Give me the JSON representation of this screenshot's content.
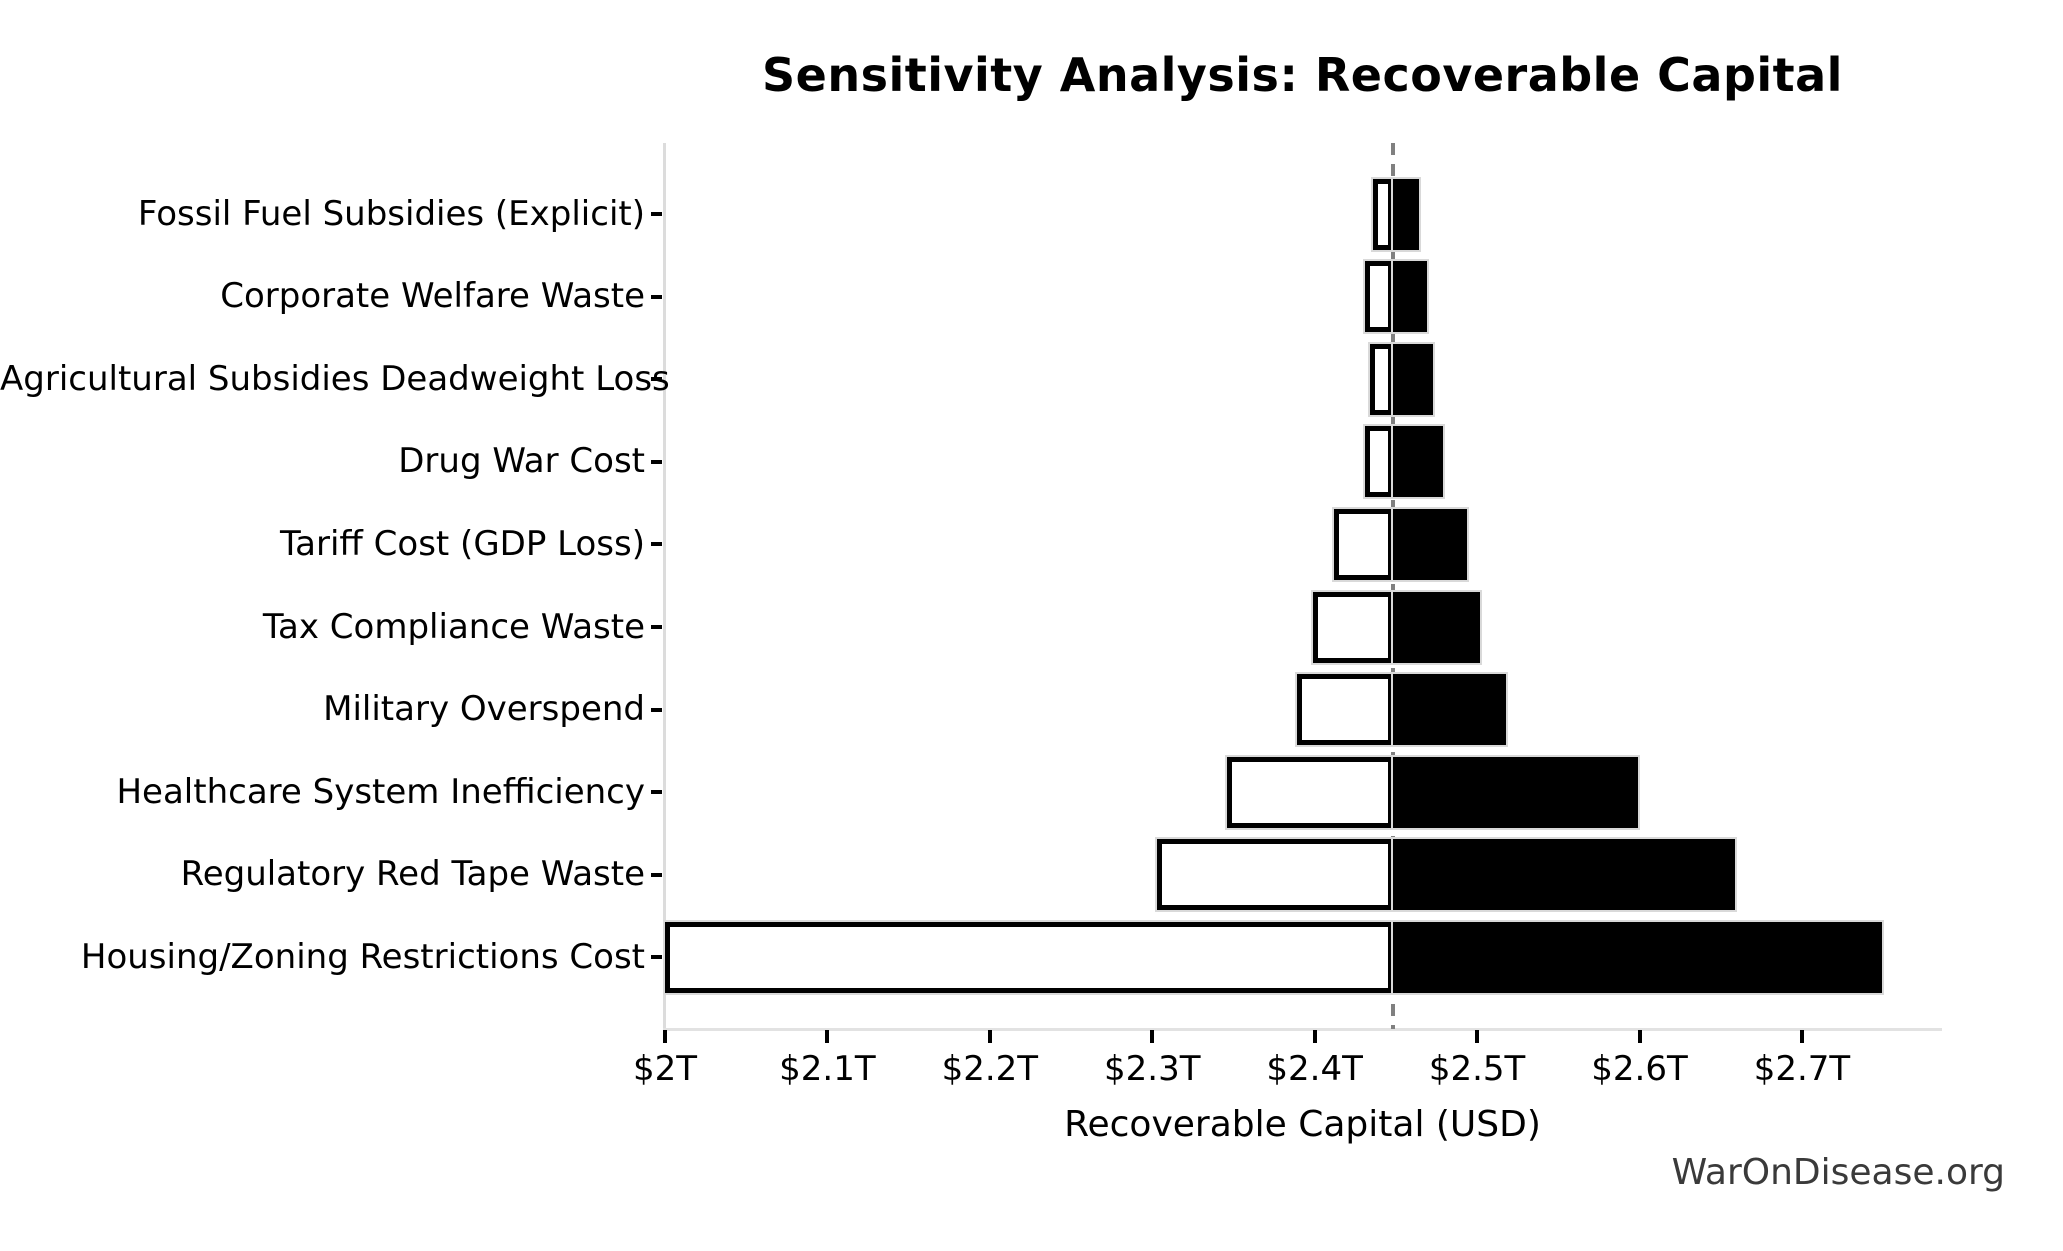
{
  "chart_data": {
    "type": "bar",
    "subtype": "tornado-sensitivity",
    "orientation": "horizontal",
    "title": "Sensitivity Analysis: Recoverable Capital",
    "xlabel": "Recoverable Capital (USD)",
    "ylabel": "",
    "watermark": "WarOnDisease.org",
    "unit": "trillions of USD",
    "baseline": 2.448,
    "xlim": [
      2.0,
      2.785
    ],
    "grid": false,
    "legend": null,
    "x_ticks": [
      {
        "value": 2.0,
        "label": "$2T"
      },
      {
        "value": 2.1,
        "label": "$2.1T"
      },
      {
        "value": 2.2,
        "label": "$2.2T"
      },
      {
        "value": 2.3,
        "label": "$2.3T"
      },
      {
        "value": 2.4,
        "label": "$2.4T"
      },
      {
        "value": 2.5,
        "label": "$2.5T"
      },
      {
        "value": 2.6,
        "label": "$2.6T"
      },
      {
        "value": 2.7,
        "label": "$2.7T"
      }
    ],
    "categories": [
      "Fossil Fuel Subsidies (Explicit)",
      "Corporate Welfare Waste",
      "Agricultural Subsidies Deadweight Loss",
      "Drug War Cost",
      "Tariff Cost (GDP Loss)",
      "Tax Compliance Waste",
      "Military Overspend",
      "Healthcare System Inefficiency",
      "Regulatory Red Tape Waste",
      "Housing/Zoning Restrictions Cost"
    ],
    "series": [
      {
        "name": "low",
        "fill": "#ffffff",
        "edge": "#000000",
        "values": [
          2.436,
          2.431,
          2.434,
          2.431,
          2.412,
          2.399,
          2.389,
          2.346,
          2.303,
          2.0
        ]
      },
      {
        "name": "high",
        "fill": "#000000",
        "edge": "#000000",
        "values": [
          2.464,
          2.469,
          2.473,
          2.479,
          2.494,
          2.502,
          2.518,
          2.599,
          2.659,
          2.749
        ]
      }
    ],
    "colors": {
      "bar_low_fill": "#ffffff",
      "bar_low_edge": "#000000",
      "bar_high_fill": "#000000",
      "baseline_line": "#808080",
      "axis_spine": "#dcdcdc",
      "tick_mark": "#000000",
      "text": "#000000",
      "watermark": "#3a3a3a"
    }
  }
}
